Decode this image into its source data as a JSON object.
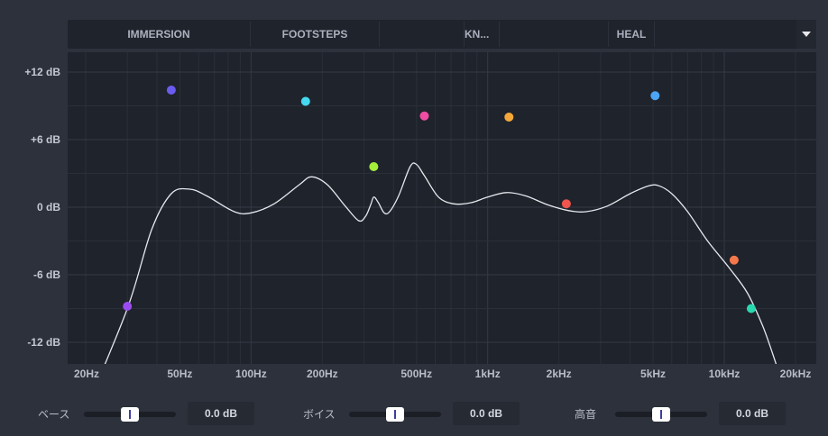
{
  "tabs": [
    {
      "label": "IMMERSION"
    },
    {
      "label": "FOOTSTEPS"
    },
    {
      "label": ""
    },
    {
      "label": "KN..."
    },
    {
      "label": ""
    },
    {
      "label": "HEAL"
    },
    {
      "label": ""
    }
  ],
  "dropdown_icon": "chevron-down-icon",
  "graph": {
    "y_axis_labels": [
      "+12 dB",
      "+6 dB",
      "0 dB",
      "-6 dB",
      "-12 dB"
    ],
    "x_axis_labels": [
      "20Hz",
      "50Hz",
      "100Hz",
      "200Hz",
      "500Hz",
      "1kHz",
      "2kHz",
      "5kHz",
      "10kHz",
      "20kHz"
    ],
    "curve_color": "#e6e8ee",
    "bands": [
      {
        "freq_hz": 30,
        "gain_db": -8.8,
        "color": "#9b4cf0"
      },
      {
        "freq_hz": 46,
        "gain_db": 10.4,
        "color": "#6b5cf0"
      },
      {
        "freq_hz": 170,
        "gain_db": 9.4,
        "color": "#45d8f0"
      },
      {
        "freq_hz": 330,
        "gain_db": 3.6,
        "color": "#a4ee3a"
      },
      {
        "freq_hz": 540,
        "gain_db": 8.1,
        "color": "#f04ca4"
      },
      {
        "freq_hz": 1230,
        "gain_db": 8.0,
        "color": "#f5a83a"
      },
      {
        "freq_hz": 2150,
        "gain_db": 0.3,
        "color": "#f0544c"
      },
      {
        "freq_hz": 5100,
        "gain_db": 9.9,
        "color": "#4ca4f5"
      },
      {
        "freq_hz": 11000,
        "gain_db": -4.7,
        "color": "#f5784c"
      },
      {
        "freq_hz": 13000,
        "gain_db": -9.0,
        "color": "#2ad8b0"
      }
    ]
  },
  "sliders": [
    {
      "label": "ベース",
      "value": "0.0 dB",
      "position": 0.5
    },
    {
      "label": "ボイス",
      "value": "0.0 dB",
      "position": 0.5
    },
    {
      "label": "高音",
      "value": "0.0 dB",
      "position": 0.5
    }
  ]
}
